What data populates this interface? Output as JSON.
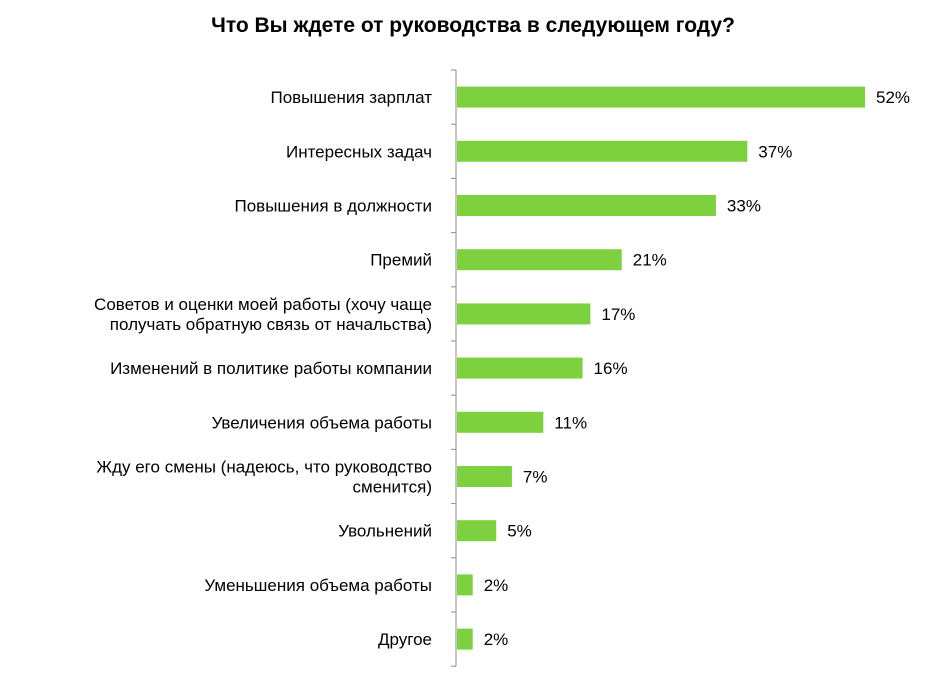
{
  "chart_data": {
    "type": "bar",
    "orientation": "horizontal",
    "title": "Что Вы ждете от руководства в следующем году?",
    "categories": [
      "Повышения зарплат",
      "Интересных задач",
      "Повышения в должности",
      "Премий",
      "Советов и оценки моей работы (хочу чаще получать обратную связь от начальства)",
      "Изменений в политике работы компании",
      "Увеличения объема работы",
      "Жду его смены (надеюсь, что руководство сменится)",
      "Увольнений",
      "Уменьшения объема работы",
      "Другое"
    ],
    "category_lines": [
      [
        "Повышения зарплат"
      ],
      [
        "Интересных задач"
      ],
      [
        "Повышения в должности"
      ],
      [
        "Премий"
      ],
      [
        "Советов и оценки моей работы (хочу чаще",
        "получать обратную связь от начальства)"
      ],
      [
        "Изменений в политике работы компании"
      ],
      [
        "Увеличения объема работы"
      ],
      [
        "Жду его смены (надеюсь, что руководство",
        "сменится)"
      ],
      [
        "Увольнений"
      ],
      [
        "Уменьшения объема работы"
      ],
      [
        "Другое"
      ]
    ],
    "values": [
      52,
      37,
      33,
      21,
      17,
      16,
      11,
      7,
      5,
      2,
      2
    ],
    "value_labels": [
      "52%",
      "37%",
      "33%",
      "21%",
      "17%",
      "16%",
      "11%",
      "7%",
      "5%",
      "2%",
      "2%"
    ],
    "unit": "%",
    "xlim": [
      0,
      52
    ],
    "grid": false,
    "legend": "none",
    "colors": {
      "bar": "#7ed13e",
      "axis": "#8c8c8c",
      "text": "#000000"
    }
  }
}
